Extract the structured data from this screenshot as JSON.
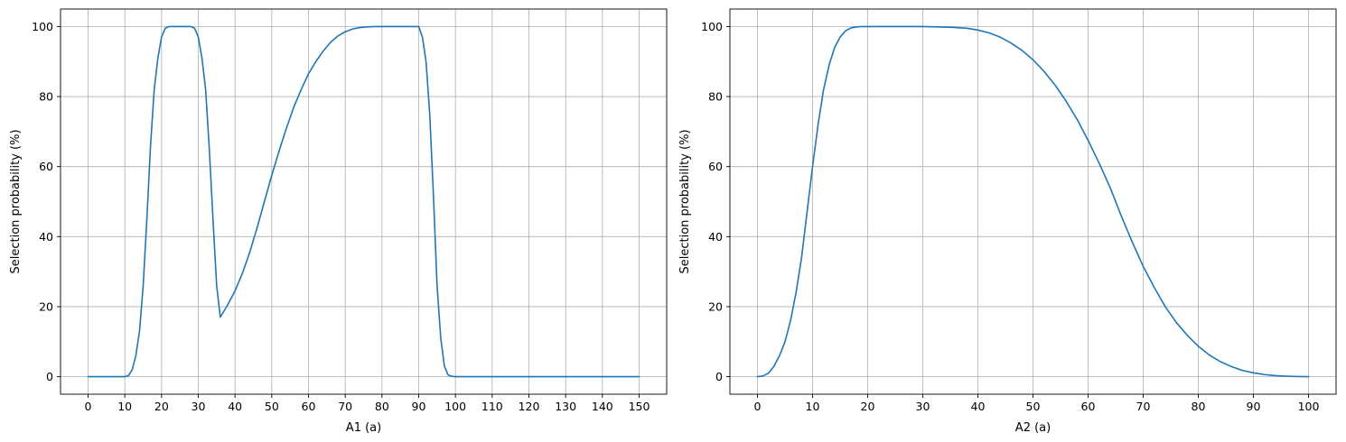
{
  "chart_data": [
    {
      "type": "line",
      "xlabel": "A1 (a)",
      "ylabel": "Selection probability (%)",
      "xlim": [
        -7.5,
        157.5
      ],
      "ylim": [
        -5,
        105
      ],
      "xticks": [
        0,
        10,
        20,
        30,
        40,
        50,
        60,
        70,
        80,
        90,
        100,
        110,
        120,
        130,
        140,
        150
      ],
      "yticks": [
        0,
        20,
        40,
        60,
        80,
        100
      ],
      "grid": true,
      "line_color": "#1f77b4",
      "series": [
        {
          "x": [
            0,
            10,
            11,
            12,
            13,
            14,
            15,
            16,
            17,
            18,
            19,
            20,
            21,
            22,
            23,
            24,
            25,
            26,
            27,
            28,
            29,
            30,
            31,
            32,
            33,
            34,
            35,
            36,
            38,
            40,
            42,
            44,
            46,
            48,
            50,
            52,
            54,
            56,
            58,
            60,
            62,
            64,
            66,
            68,
            70,
            72,
            74,
            76,
            78,
            80,
            85,
            90,
            91,
            92,
            93,
            94,
            95,
            96,
            97,
            98,
            99,
            100,
            150
          ],
          "y": [
            0,
            0,
            0.3,
            2,
            6,
            13,
            26,
            45,
            66,
            82,
            91,
            97,
            99.5,
            100,
            100,
            100,
            100,
            100,
            100,
            100,
            99.5,
            97,
            91,
            82,
            65,
            45,
            26,
            17,
            20.5,
            24.5,
            29.5,
            35.5,
            42.5,
            50,
            57.5,
            64.5,
            71,
            77,
            82,
            86.5,
            90,
            93,
            95.5,
            97.3,
            98.5,
            99.3,
            99.7,
            99.9,
            100,
            100,
            100,
            100,
            97,
            90,
            75,
            52,
            26,
            11,
            3,
            0.5,
            0.1,
            0,
            0
          ]
        }
      ]
    },
    {
      "type": "line",
      "xlabel": "A2 (a)",
      "ylabel": "Selection probability (%)",
      "xlim": [
        -5,
        105
      ],
      "ylim": [
        -5,
        105
      ],
      "xticks": [
        0,
        10,
        20,
        30,
        40,
        50,
        60,
        70,
        80,
        90,
        100
      ],
      "yticks": [
        0,
        20,
        40,
        60,
        80,
        100
      ],
      "grid": true,
      "line_color": "#1f77b4",
      "series": [
        {
          "x": [
            0,
            1,
            2,
            3,
            4,
            5,
            6,
            7,
            8,
            9,
            10,
            11,
            12,
            13,
            14,
            15,
            16,
            17,
            18,
            19,
            20,
            25,
            30,
            35,
            38,
            40,
            42,
            44,
            46,
            48,
            50,
            52,
            54,
            56,
            58,
            60,
            62,
            64,
            66,
            68,
            70,
            72,
            74,
            76,
            78,
            80,
            82,
            84,
            86,
            88,
            90,
            92,
            94,
            96,
            98,
            100
          ],
          "y": [
            0,
            0.2,
            1,
            3,
            6,
            10,
            16,
            24,
            34,
            47,
            60,
            72,
            82,
            89,
            94,
            97,
            98.8,
            99.6,
            99.9,
            100,
            100,
            100,
            100,
            99.8,
            99.5,
            99,
            98.2,
            97,
            95.3,
            93.2,
            90.5,
            87.2,
            83.3,
            78.7,
            73.5,
            67.5,
            61,
            54,
            46,
            38.5,
            31.5,
            25.5,
            20,
            15.5,
            11.8,
            8.7,
            6.2,
            4.3,
            2.9,
            1.8,
            1.1,
            0.6,
            0.3,
            0.15,
            0.05,
            0
          ]
        }
      ]
    }
  ]
}
